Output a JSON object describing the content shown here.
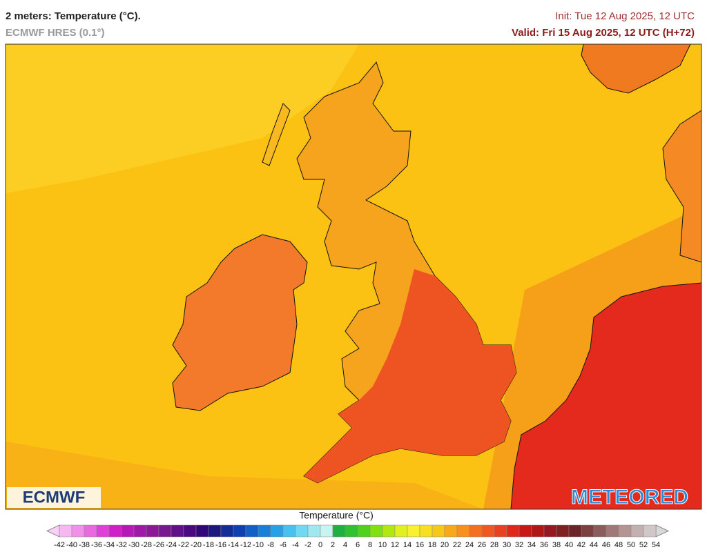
{
  "header": {
    "title": "2 meters: Temperature (°C).",
    "subtitle": "ECMWF HRES (0.1°)",
    "init": "Init: Tue 12 Aug 2025, 12 UTC",
    "valid": "Valid: Fri 15 Aug 2025, 12 UTC (H+72)"
  },
  "map": {
    "logo_left": "ECMWF",
    "logo_right": "METEORED"
  },
  "legend": {
    "title": "Temperature (°C)",
    "labels": [
      -42,
      -40,
      -38,
      -36,
      -34,
      -32,
      -30,
      -28,
      -26,
      -24,
      -22,
      -20,
      -18,
      -16,
      -14,
      -12,
      -10,
      -8,
      -6,
      -4,
      -2,
      0,
      2,
      4,
      6,
      8,
      10,
      12,
      14,
      16,
      18,
      20,
      22,
      24,
      26,
      28,
      30,
      32,
      34,
      36,
      38,
      40,
      42,
      44,
      46,
      48,
      50,
      52,
      54
    ],
    "low_color": "#fbd0f8",
    "high_color": "#d8d8d8",
    "colors": [
      "#f6b8f0",
      "#f090e8",
      "#ea68e0",
      "#e040d8",
      "#d020c8",
      "#b818b8",
      "#a018a8",
      "#8c1898",
      "#781890",
      "#601088",
      "#4c0880",
      "#300878",
      "#1c1880",
      "#142c98",
      "#1040b0",
      "#1060c8",
      "#1880d8",
      "#28a0e8",
      "#48c0f0",
      "#70d8f0",
      "#a0e8f0",
      "#c8f4f0",
      "#20b040",
      "#30c030",
      "#50d020",
      "#80e010",
      "#b0e810",
      "#e0f020",
      "#f8f030",
      "#f8e020",
      "#f8c818",
      "#f8a818",
      "#f89020",
      "#f47020",
      "#f05820",
      "#e84020",
      "#e02818",
      "#c81818",
      "#b01818",
      "#981820",
      "#802020",
      "#6c2428",
      "#7c4040",
      "#8c5c5c",
      "#a07878",
      "#b49494",
      "#c4b0b0",
      "#d0c8c8"
    ]
  }
}
